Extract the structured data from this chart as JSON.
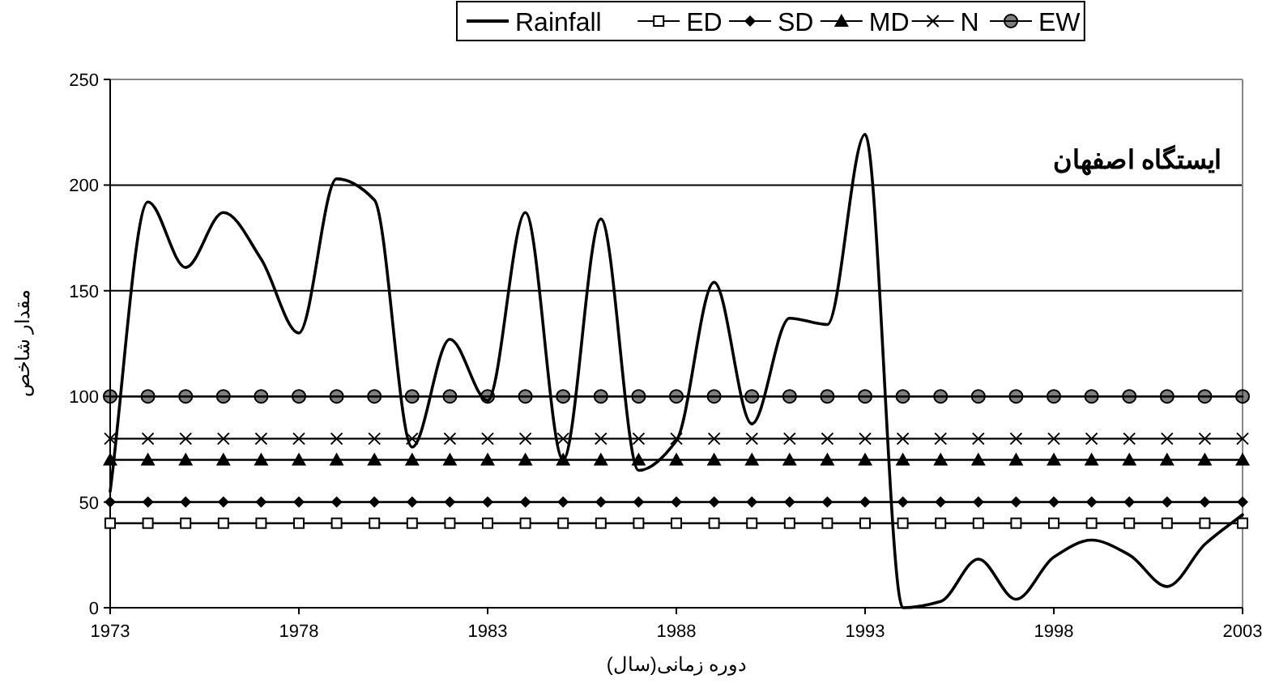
{
  "chart_data": {
    "type": "line",
    "title": "ایستگاه اصفهان",
    "xlabel": "دوره زمانی(سال)",
    "ylabel": "مقدار شاخص",
    "x": [
      1973,
      1974,
      1975,
      1976,
      1977,
      1978,
      1979,
      1980,
      1981,
      1982,
      1983,
      1984,
      1985,
      1986,
      1987,
      1988,
      1989,
      1990,
      1991,
      1992,
      1993,
      1994,
      1995,
      1996,
      1997,
      1998,
      1999,
      2000,
      2001,
      2002,
      2003
    ],
    "series": [
      {
        "name": "Rainfall",
        "color": "#000000",
        "marker": "none",
        "values": [
          55,
          192,
          161,
          187,
          165,
          130,
          203,
          193,
          76,
          127,
          98,
          187,
          70,
          184,
          65,
          79,
          154,
          87,
          137,
          134,
          224,
          0,
          3,
          23,
          4,
          24,
          32,
          25,
          10,
          30,
          44
        ]
      },
      {
        "name": "ED",
        "color": "#000000",
        "marker": "square",
        "values": [
          40,
          40,
          40,
          40,
          40,
          40,
          40,
          40,
          40,
          40,
          40,
          40,
          40,
          40,
          40,
          40,
          40,
          40,
          40,
          40,
          40,
          40,
          40,
          40,
          40,
          40,
          40,
          40,
          40,
          40,
          40
        ]
      },
      {
        "name": "SD",
        "color": "#000000",
        "marker": "diamond",
        "values": [
          50,
          50,
          50,
          50,
          50,
          50,
          50,
          50,
          50,
          50,
          50,
          50,
          50,
          50,
          50,
          50,
          50,
          50,
          50,
          50,
          50,
          50,
          50,
          50,
          50,
          50,
          50,
          50,
          50,
          50,
          50
        ]
      },
      {
        "name": "MD",
        "color": "#000000",
        "marker": "triangle",
        "values": [
          70,
          70,
          70,
          70,
          70,
          70,
          70,
          70,
          70,
          70,
          70,
          70,
          70,
          70,
          70,
          70,
          70,
          70,
          70,
          70,
          70,
          70,
          70,
          70,
          70,
          70,
          70,
          70,
          70,
          70,
          70
        ]
      },
      {
        "name": "N",
        "color": "#000000",
        "marker": "cross",
        "values": [
          80,
          80,
          80,
          80,
          80,
          80,
          80,
          80,
          80,
          80,
          80,
          80,
          80,
          80,
          80,
          80,
          80,
          80,
          80,
          80,
          80,
          80,
          80,
          80,
          80,
          80,
          80,
          80,
          80,
          80,
          80
        ]
      },
      {
        "name": "EW",
        "color": "#000000",
        "marker": "circle",
        "values": [
          100,
          100,
          100,
          100,
          100,
          100,
          100,
          100,
          100,
          100,
          100,
          100,
          100,
          100,
          100,
          100,
          100,
          100,
          100,
          100,
          100,
          100,
          100,
          100,
          100,
          100,
          100,
          100,
          100,
          100,
          100
        ]
      }
    ],
    "xlim": [
      1973,
      2003
    ],
    "xticks": [
      1973,
      1978,
      1983,
      1988,
      1993,
      1998,
      2003
    ],
    "ylim": [
      0,
      250
    ],
    "yticks": [
      0,
      50,
      100,
      150,
      200,
      250
    ],
    "grid": "y",
    "legend": "top",
    "line_style": "solid"
  }
}
